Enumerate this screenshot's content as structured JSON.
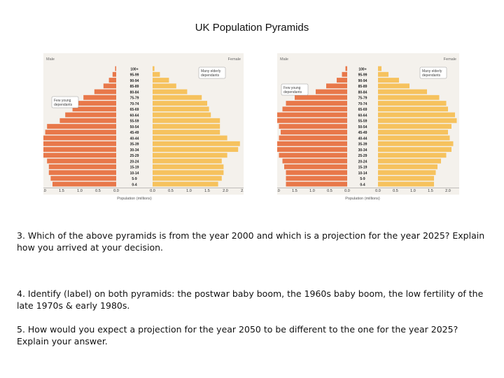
{
  "page": {
    "title": "UK Population Pyramids"
  },
  "questions": [
    "3. Which of the above pyramids is from the year 2000 and which is a projection for the year 2025? Explain how you arrived at your decision.",
    "4. Identify (label) on both pyramids: the postwar baby boom, the 1960s baby boom, the low fertility of the late 1970s & early 1980s.",
    "5. How would you expect a projection for the year 2050 to be different to the one for the year 2025? Explain your answer."
  ],
  "colors": {
    "male": "#e8784a",
    "female": "#f6c25e",
    "panel_bg": "#f4f1ec",
    "annotation_border": "#9a9a9a"
  },
  "chart_data": [
    {
      "type": "bar",
      "orientation": "population-pyramid",
      "left_label": "Male",
      "right_label": "Female",
      "xlabel": "Population (millions)",
      "xlim": [
        0,
        2.5
      ],
      "x_ticks": [
        "2.5",
        "2.0",
        "1.5",
        "1.0",
        "0.5",
        "0.0",
        "0.0",
        "0.5",
        "1.0",
        "1.5",
        "2.0",
        "2.5"
      ],
      "categories": [
        "100+",
        "95-99",
        "90-94",
        "85-89",
        "80-84",
        "75-79",
        "70-74",
        "65-69",
        "60-64",
        "55-59",
        "50-54",
        "45-49",
        "40-44",
        "35-39",
        "30-34",
        "25-29",
        "20-24",
        "15-19",
        "10-14",
        "5-9",
        "0-4"
      ],
      "series": [
        {
          "name": "Male",
          "values": [
            0.03,
            0.1,
            0.2,
            0.35,
            0.6,
            0.9,
            1.05,
            1.2,
            1.4,
            1.55,
            1.9,
            1.95,
            2.05,
            2.35,
            2.3,
            2.0,
            1.9,
            1.85,
            1.85,
            1.8,
            1.75
          ]
        },
        {
          "name": "Female",
          "values": [
            0.05,
            0.2,
            0.45,
            0.65,
            0.95,
            1.35,
            1.5,
            1.55,
            1.6,
            1.85,
            1.85,
            1.85,
            2.05,
            2.4,
            2.35,
            2.05,
            1.9,
            1.95,
            1.95,
            1.9,
            1.8
          ]
        }
      ],
      "annotations": [
        {
          "text": [
            "Few young",
            "dependants"
          ],
          "side": "left"
        },
        {
          "text": [
            "Many elderly",
            "dependants"
          ],
          "side": "right"
        }
      ]
    },
    {
      "type": "bar",
      "orientation": "population-pyramid",
      "left_label": "Male",
      "right_label": "Female",
      "xlabel": "Population (millions)",
      "xlim": [
        0,
        2.5
      ],
      "x_ticks": [
        "2.5",
        "2.0",
        "1.5",
        "1.0",
        "0.5",
        "0.0",
        "0.0",
        "0.5",
        "1.0",
        "1.5",
        "2.0",
        "2.5"
      ],
      "categories": [
        "100+",
        "95-99",
        "90-94",
        "85-89",
        "80-84",
        "75-79",
        "70-74",
        "65-69",
        "60-64",
        "55-59",
        "50-54",
        "45-49",
        "40-44",
        "35-39",
        "30-34",
        "25-29",
        "20-24",
        "15-19",
        "10-14",
        "5-9",
        "0-4"
      ],
      "series": [
        {
          "name": "Male",
          "values": [
            0.05,
            0.15,
            0.3,
            0.6,
            0.9,
            1.5,
            1.75,
            1.85,
            2.05,
            2.1,
            1.95,
            1.9,
            1.95,
            2.05,
            2.05,
            1.95,
            1.85,
            1.8,
            1.75,
            1.75,
            1.75
          ]
        },
        {
          "name": "Female",
          "values": [
            0.1,
            0.3,
            0.6,
            0.9,
            1.4,
            1.75,
            1.95,
            2.0,
            2.2,
            2.25,
            2.1,
            2.0,
            2.05,
            2.15,
            2.1,
            1.95,
            1.8,
            1.7,
            1.65,
            1.6,
            1.6
          ]
        }
      ],
      "annotations": [
        {
          "text": [
            "Few young",
            "dependants"
          ],
          "side": "left"
        },
        {
          "text": [
            "Many elderly",
            "dependants"
          ],
          "side": "right"
        }
      ]
    }
  ]
}
